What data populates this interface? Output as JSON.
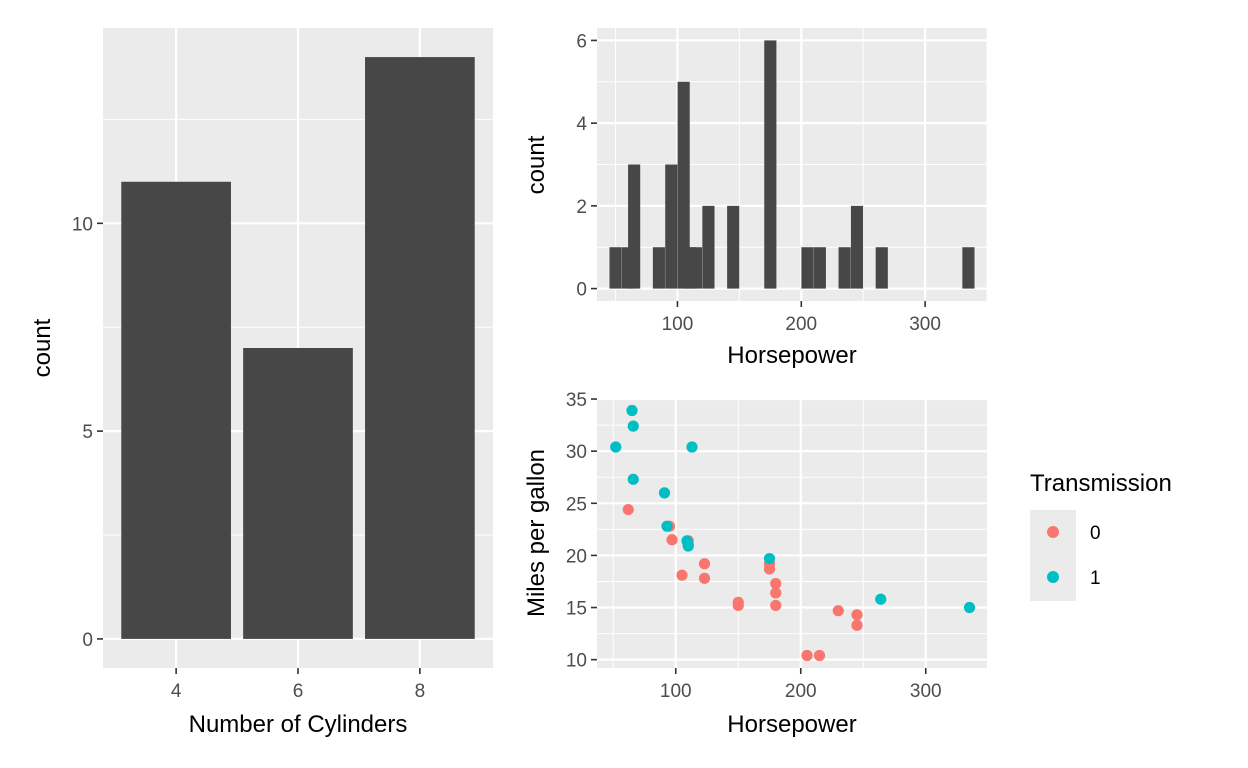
{
  "chart_data": [
    {
      "type": "bar",
      "categories": [
        "4",
        "6",
        "8"
      ],
      "values": [
        11,
        7,
        14
      ],
      "xlabel": "Number of Cylinders",
      "ylabel": "count",
      "yticks": [
        0,
        5,
        10
      ],
      "ylim": [
        -0.7,
        14.7
      ]
    },
    {
      "type": "bar",
      "subtype": "histogram",
      "bins": [
        {
          "x": 50,
          "count": 1
        },
        {
          "x": 60,
          "count": 1
        },
        {
          "x": 65,
          "count": 3
        },
        {
          "x": 85,
          "count": 1
        },
        {
          "x": 95,
          "count": 3
        },
        {
          "x": 105,
          "count": 5
        },
        {
          "x": 110,
          "count": 1
        },
        {
          "x": 115,
          "count": 1
        },
        {
          "x": 125,
          "count": 2
        },
        {
          "x": 145,
          "count": 2
        },
        {
          "x": 175,
          "count": 6
        },
        {
          "x": 205,
          "count": 1
        },
        {
          "x": 215,
          "count": 1
        },
        {
          "x": 235,
          "count": 1
        },
        {
          "x": 245,
          "count": 2
        },
        {
          "x": 265,
          "count": 1
        },
        {
          "x": 335,
          "count": 1
        }
      ],
      "binwidth": 9.8,
      "xlabel": "Horsepower",
      "ylabel": "count",
      "xticks": [
        100,
        200,
        300
      ],
      "yticks": [
        0,
        2,
        4,
        6
      ],
      "xlim": [
        35,
        350
      ],
      "ylim": [
        -0.3,
        6.3
      ]
    },
    {
      "type": "scatter",
      "xlabel": "Horsepower",
      "ylabel": "Miles per gallon",
      "xticks": [
        100,
        200,
        300
      ],
      "yticks": [
        10,
        15,
        20,
        25,
        30,
        35
      ],
      "xlim": [
        37,
        349
      ],
      "ylim": [
        9.2,
        35.1
      ],
      "legend": {
        "title": "Transmission",
        "position": "right"
      },
      "series": [
        {
          "name": "0",
          "color": "#f8766d",
          "points": [
            [
              110,
              21.4
            ],
            [
              175,
              18.7
            ],
            [
              105,
              18.1
            ],
            [
              245,
              14.3
            ],
            [
              62,
              24.4
            ],
            [
              95,
              22.8
            ],
            [
              123,
              19.2
            ],
            [
              123,
              17.8
            ],
            [
              180,
              16.4
            ],
            [
              180,
              17.3
            ],
            [
              180,
              15.2
            ],
            [
              205,
              10.4
            ],
            [
              215,
              10.4
            ],
            [
              230,
              14.7
            ],
            [
              97,
              21.5
            ],
            [
              150,
              15.5
            ],
            [
              150,
              15.2
            ],
            [
              245,
              13.3
            ],
            [
              175,
              19.2
            ]
          ]
        },
        {
          "name": "1",
          "color": "#00bfc4",
          "points": [
            [
              110,
              21.0
            ],
            [
              110,
              20.9
            ],
            [
              93,
              22.8
            ],
            [
              66,
              32.4
            ],
            [
              52,
              30.4
            ],
            [
              65,
              33.9
            ],
            [
              66,
              27.3
            ],
            [
              91,
              26.0
            ],
            [
              113,
              30.4
            ],
            [
              264,
              15.8
            ],
            [
              175,
              19.7
            ],
            [
              335,
              15.0
            ],
            [
              109,
              21.4
            ]
          ]
        }
      ]
    }
  ]
}
